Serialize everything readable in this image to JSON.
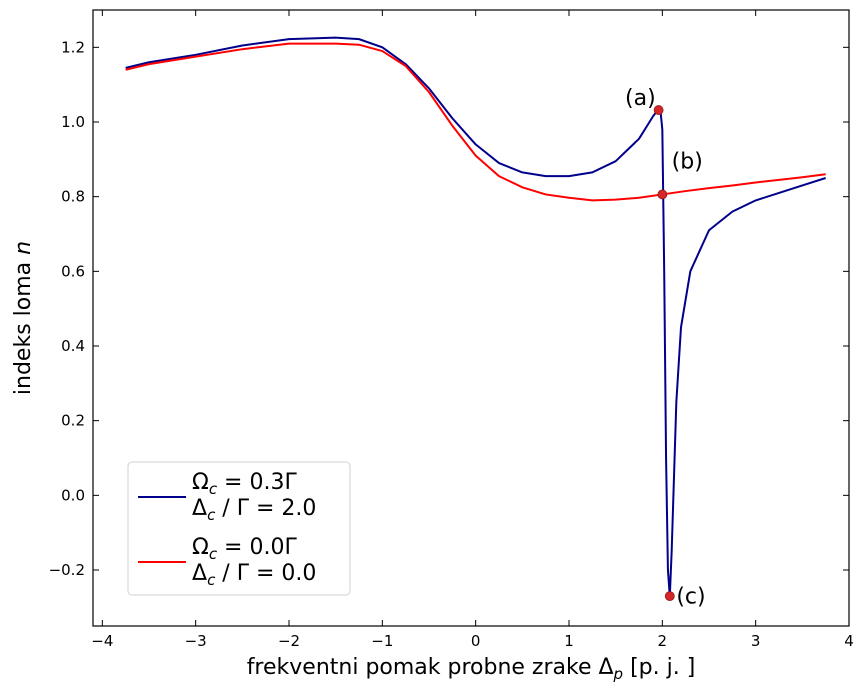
{
  "chart_data": {
    "type": "line",
    "xlabel": {
      "main": "frekventni pomak probne zrake Δ",
      "sub": "p",
      "unit": " [p. j. ]"
    },
    "ylabel": {
      "main": "indeks loma ",
      "var": "n"
    },
    "xlim": [
      -4.1,
      4.0
    ],
    "ylim": [
      -0.35,
      1.3
    ],
    "xticks": [
      -4,
      -3,
      -2,
      -1,
      0,
      1,
      2,
      3,
      4
    ],
    "xtick_labels": [
      "−4",
      "−3",
      "−2",
      "−1",
      "0",
      "1",
      "2",
      "3",
      "4"
    ],
    "yticks": [
      -0.2,
      0.0,
      0.2,
      0.4,
      0.6,
      0.8,
      1.0,
      1.2
    ],
    "ytick_labels": [
      "−0.2",
      "0.0",
      "0.2",
      "0.4",
      "0.6",
      "0.8",
      "1.0",
      "1.2"
    ],
    "grid": false,
    "legend_position": "lower-left",
    "series": [
      {
        "color": "#00008b",
        "legend": {
          "line1": {
            "sym": "Ω",
            "sub": "c",
            "rest": "  = 0.3Γ"
          },
          "line2": {
            "sym": "Δ",
            "sub": "c",
            "rest": " / Γ = 2.0"
          }
        },
        "x": [
          -3.75,
          -3.5,
          -3.0,
          -2.5,
          -2.0,
          -1.5,
          -1.25,
          -1.0,
          -0.75,
          -0.5,
          -0.25,
          0.0,
          0.25,
          0.5,
          0.75,
          1.0,
          1.25,
          1.5,
          1.75,
          1.85,
          1.9,
          1.95,
          1.98,
          2.0,
          2.02,
          2.04,
          2.06,
          2.08,
          2.1,
          2.15,
          2.2,
          2.3,
          2.5,
          2.75,
          3.0,
          3.25,
          3.5,
          3.75
        ],
        "y": [
          1.145,
          1.16,
          1.18,
          1.205,
          1.222,
          1.226,
          1.222,
          1.2,
          1.155,
          1.09,
          1.01,
          0.94,
          0.89,
          0.865,
          0.855,
          0.855,
          0.865,
          0.895,
          0.955,
          0.995,
          1.015,
          1.032,
          1.03,
          0.98,
          0.6,
          0.1,
          -0.2,
          -0.27,
          -0.15,
          0.25,
          0.45,
          0.6,
          0.71,
          0.76,
          0.79,
          0.81,
          0.83,
          0.85
        ]
      },
      {
        "color": "#ff0000",
        "legend": {
          "line1": {
            "sym": "Ω",
            "sub": "c",
            "rest": "  = 0.0Γ"
          },
          "line2": {
            "sym": "Δ",
            "sub": "c",
            "rest": " / Γ = 0.0"
          }
        },
        "x": [
          -3.75,
          -3.5,
          -3.0,
          -2.5,
          -2.0,
          -1.5,
          -1.25,
          -1.0,
          -0.75,
          -0.5,
          -0.25,
          0.0,
          0.25,
          0.5,
          0.75,
          1.0,
          1.25,
          1.5,
          1.75,
          2.0,
          2.25,
          2.5,
          2.75,
          3.0,
          3.25,
          3.5,
          3.75
        ],
        "y": [
          1.14,
          1.155,
          1.175,
          1.195,
          1.21,
          1.21,
          1.207,
          1.19,
          1.15,
          1.08,
          0.99,
          0.91,
          0.855,
          0.825,
          0.806,
          0.797,
          0.79,
          0.792,
          0.797,
          0.806,
          0.815,
          0.823,
          0.83,
          0.838,
          0.845,
          0.852,
          0.86
        ]
      }
    ],
    "points": [
      {
        "label": "(a)",
        "x": 1.96,
        "y": 1.032,
        "label_x": 1.6,
        "label_y": 1.045
      },
      {
        "label": "(b)",
        "x": 2.0,
        "y": 0.806,
        "label_x": 2.1,
        "label_y": 0.875
      },
      {
        "label": "(c)",
        "x": 2.08,
        "y": -0.27,
        "label_x": 2.15,
        "label_y": -0.29
      }
    ]
  }
}
